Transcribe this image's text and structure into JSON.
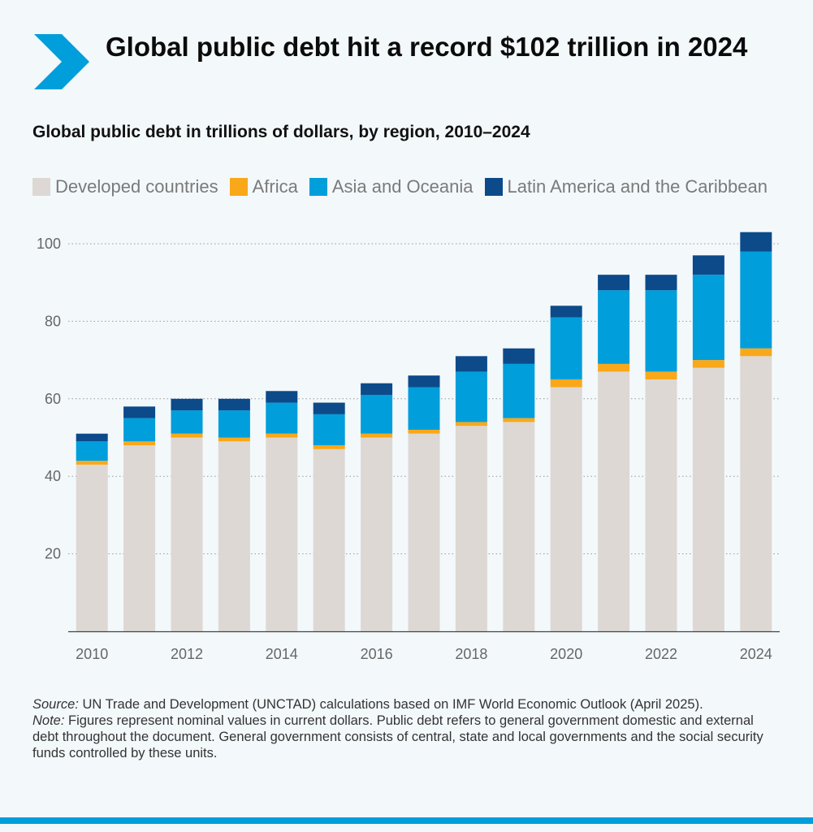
{
  "title": "Global public debt hit a record $102 trillion in 2024",
  "subtitle": "Global public debt in trillions of dollars, by region, 2010–2024",
  "colors": {
    "developed": "#ddd8d4",
    "africa": "#f9a81a",
    "asia": "#009edb",
    "latam": "#0c4a8a",
    "grid": "#9a9a9a",
    "brand": "#009edb"
  },
  "legend": [
    {
      "label": "Developed countries",
      "color": "#ddd8d4"
    },
    {
      "label": "Africa",
      "color": "#f9a81a"
    },
    {
      "label": "Asia and Oceania",
      "color": "#009edb"
    },
    {
      "label": "Latin America and the Caribbean",
      "color": "#0c4a8a"
    }
  ],
  "chart_data": {
    "type": "bar",
    "stacked": true,
    "title": "Global public debt in trillions of dollars, by region, 2010–2024",
    "xlabel": "",
    "ylabel": "",
    "ylim": [
      0,
      100
    ],
    "yticks": [
      20,
      40,
      60,
      80,
      100
    ],
    "categories": [
      "2010",
      "2011",
      "2012",
      "2013",
      "2014",
      "2015",
      "2016",
      "2017",
      "2018",
      "2019",
      "2020",
      "2021",
      "2022",
      "2023",
      "2024"
    ],
    "xtick_labels": [
      "2010",
      "",
      "2012",
      "",
      "2014",
      "",
      "2016",
      "",
      "2018",
      "",
      "2020",
      "",
      "2022",
      "",
      "2024"
    ],
    "series": [
      {
        "name": "Developed countries",
        "color": "#ddd8d4",
        "values": [
          43,
          48,
          50,
          49,
          50,
          47,
          50,
          51,
          53,
          54,
          63,
          67,
          65,
          68,
          71
        ]
      },
      {
        "name": "Africa",
        "color": "#f9a81a",
        "values": [
          1,
          1,
          1,
          1,
          1,
          1,
          1,
          1,
          1,
          1,
          2,
          2,
          2,
          2,
          2
        ]
      },
      {
        "name": "Asia and Oceania",
        "color": "#009edb",
        "values": [
          5,
          6,
          6,
          7,
          8,
          8,
          10,
          11,
          13,
          14,
          16,
          19,
          21,
          22,
          25
        ]
      },
      {
        "name": "Latin America and the Caribbean",
        "color": "#0c4a8a",
        "values": [
          2,
          3,
          3,
          3,
          3,
          3,
          3,
          3,
          4,
          4,
          3,
          4,
          4,
          5,
          5
        ]
      }
    ]
  },
  "notes": {
    "source_label": "Source:",
    "source_text": " UN Trade and Development (UNCTAD) calculations based on IMF World Economic Outlook (April 2025).",
    "note_label": "Note:",
    "note_text": " Figures represent nominal values in current dollars. Public debt refers to general government domestic and external debt throughout the document. General government consists of central, state and local governments and the social security funds controlled by these units."
  }
}
